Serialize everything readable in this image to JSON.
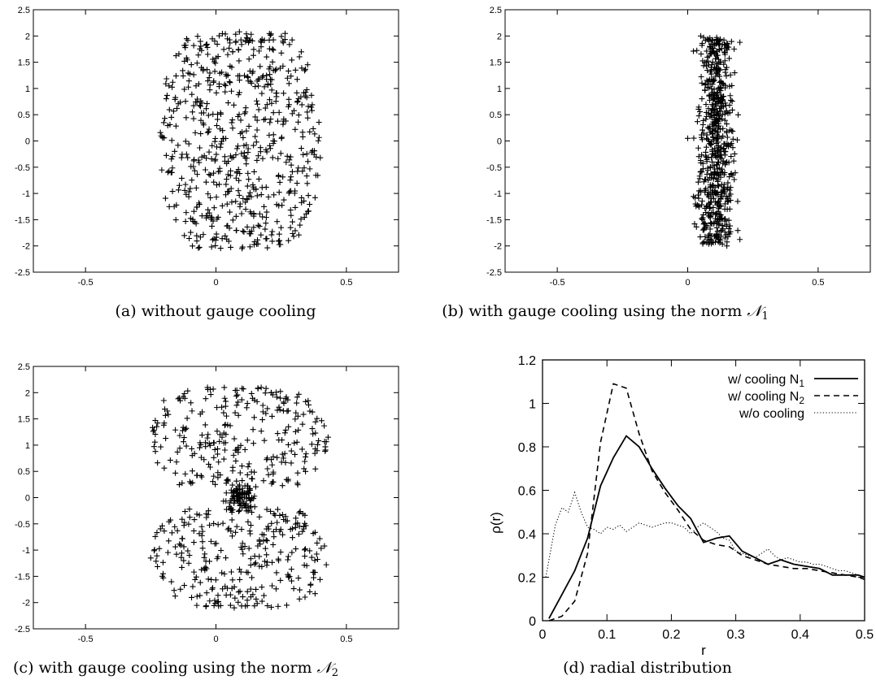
{
  "captions": {
    "a": "(a) without gauge cooling",
    "b": "(b) with gauge cooling using the norm",
    "b_math": "𝒩",
    "b_sub": "1",
    "c": "(c) with gauge cooling using the norm",
    "c_math": "𝒩",
    "c_sub": "2",
    "d": "(d) radial distribution"
  },
  "colors": {
    "ink": "#000000",
    "background": "#ffffff"
  },
  "chart_data": [
    {
      "id": "a",
      "type": "scatter",
      "marker": "plus",
      "title": "",
      "xlabel": "",
      "ylabel": "",
      "xlim": [
        -0.7,
        0.7
      ],
      "ylim": [
        -2.5,
        2.5
      ],
      "xticks": [
        "-0.5",
        "0",
        "0.5"
      ],
      "yticks": [
        "2.5",
        "2",
        "1.5",
        "1",
        "0.5",
        "0",
        "-0.5",
        "-1",
        "-1.5",
        "-2",
        "-2.5"
      ],
      "distribution": "roughly uniform oval cloud centred at x≈0.09, spanning x -0.21 to 0.40 and y -2.05 to 2.08, about 650 points",
      "points_sample": [
        [
          -0.2,
          0.35
        ],
        [
          -0.18,
          1.05
        ],
        [
          0.38,
          -1.08
        ],
        [
          0.4,
          -0.32
        ],
        [
          0.09,
          2.08
        ],
        [
          0.1,
          -2.05
        ],
        [
          -0.16,
          -1.25
        ],
        [
          0.35,
          0.55
        ]
      ]
    },
    {
      "id": "b",
      "type": "scatter",
      "marker": "plus",
      "title": "",
      "xlabel": "",
      "ylabel": "",
      "xlim": [
        -0.7,
        0.7
      ],
      "ylim": [
        -2.5,
        2.5
      ],
      "xticks": [
        "-0.5",
        "0",
        "0.5"
      ],
      "yticks": [
        "2.5",
        "2",
        "1.5",
        "1",
        "0.5",
        "0",
        "-0.5",
        "-1",
        "-1.5",
        "-2",
        "-2.5"
      ],
      "distribution": "narrow vertical band at x 0.03 to 0.2, y -2.0 to 2.0, about 650 points",
      "points_sample": [
        [
          0.0,
          0.05
        ],
        [
          0.19,
          0.02
        ],
        [
          0.05,
          2.0
        ],
        [
          0.15,
          -2.0
        ],
        [
          0.03,
          -1.2
        ],
        [
          0.18,
          1.3
        ]
      ]
    },
    {
      "id": "c",
      "type": "scatter",
      "marker": "plus",
      "title": "",
      "xlabel": "",
      "ylabel": "",
      "xlim": [
        -0.7,
        0.7
      ],
      "ylim": [
        -2.5,
        2.5
      ],
      "xticks": [
        "-0.5",
        "0",
        "0.5"
      ],
      "yticks": [
        "2.5",
        "2",
        "1.5",
        "1",
        "0.5",
        "0",
        "-0.5",
        "-1",
        "-1.5",
        "-2",
        "-2.5"
      ],
      "distribution": "two lobes (upper y 0.2 to 2.1, lower y -2.1 to -0.2) spanning x -0.25 to 0.43 with a dense core at (0.1, 0), about 650 points",
      "points_sample": [
        [
          -0.25,
          -1.15
        ],
        [
          0.43,
          1.15
        ],
        [
          0.38,
          -1.83
        ],
        [
          0.1,
          0.0
        ],
        [
          0.09,
          0.05
        ],
        [
          -0.2,
          1.85
        ],
        [
          0.1,
          2.08
        ],
        [
          0.07,
          -2.1
        ]
      ]
    },
    {
      "id": "d",
      "type": "line",
      "title": "",
      "xlabel": "r",
      "ylabel": "ρ(r)",
      "xlim": [
        0,
        0.5
      ],
      "ylim": [
        0,
        1.2
      ],
      "xticks": [
        "0",
        "0.1",
        "0.2",
        "0.3",
        "0.4",
        "0.5"
      ],
      "yticks": [
        "0",
        "0.2",
        "0.4",
        "0.6",
        "0.8",
        "1",
        "1.2"
      ],
      "legend_position": "top-right",
      "series": [
        {
          "name": "w/ cooling N",
          "name_sub": "1",
          "style": "solid",
          "x": [
            0.01,
            0.03,
            0.05,
            0.07,
            0.09,
            0.11,
            0.13,
            0.15,
            0.17,
            0.19,
            0.21,
            0.23,
            0.25,
            0.27,
            0.29,
            0.31,
            0.33,
            0.35,
            0.37,
            0.39,
            0.41,
            0.43,
            0.45,
            0.47,
            0.49,
            0.5
          ],
          "y": [
            0.01,
            0.12,
            0.23,
            0.38,
            0.62,
            0.75,
            0.85,
            0.8,
            0.7,
            0.61,
            0.53,
            0.47,
            0.36,
            0.38,
            0.39,
            0.32,
            0.29,
            0.26,
            0.28,
            0.26,
            0.25,
            0.24,
            0.21,
            0.21,
            0.21,
            0.2
          ]
        },
        {
          "name": "w/ cooling N",
          "name_sub": "2",
          "style": "dashed",
          "x": [
            0.01,
            0.03,
            0.05,
            0.07,
            0.09,
            0.11,
            0.13,
            0.15,
            0.17,
            0.19,
            0.21,
            0.23,
            0.25,
            0.27,
            0.29,
            0.31,
            0.33,
            0.35,
            0.37,
            0.39,
            0.41,
            0.43,
            0.45,
            0.47,
            0.49,
            0.5
          ],
          "y": [
            0.0,
            0.02,
            0.09,
            0.31,
            0.82,
            1.09,
            1.07,
            0.86,
            0.69,
            0.59,
            0.51,
            0.42,
            0.37,
            0.35,
            0.34,
            0.3,
            0.28,
            0.26,
            0.25,
            0.24,
            0.24,
            0.23,
            0.22,
            0.21,
            0.2,
            0.19
          ]
        },
        {
          "name": "w/o cooling",
          "style": "dotted",
          "x": [
            0.005,
            0.01,
            0.02,
            0.03,
            0.04,
            0.05,
            0.06,
            0.07,
            0.08,
            0.09,
            0.1,
            0.11,
            0.12,
            0.13,
            0.14,
            0.15,
            0.16,
            0.17,
            0.18,
            0.19,
            0.2,
            0.21,
            0.22,
            0.23,
            0.24,
            0.25,
            0.26,
            0.27,
            0.28,
            0.29,
            0.3,
            0.31,
            0.32,
            0.33,
            0.34,
            0.35,
            0.36,
            0.37,
            0.38,
            0.39,
            0.4,
            0.41,
            0.42,
            0.43,
            0.44,
            0.45,
            0.46,
            0.47,
            0.48,
            0.49,
            0.5
          ],
          "y": [
            0.2,
            0.28,
            0.44,
            0.52,
            0.5,
            0.59,
            0.5,
            0.43,
            0.42,
            0.4,
            0.43,
            0.42,
            0.44,
            0.41,
            0.43,
            0.45,
            0.44,
            0.43,
            0.44,
            0.45,
            0.45,
            0.44,
            0.43,
            0.4,
            0.43,
            0.45,
            0.43,
            0.41,
            0.38,
            0.37,
            0.32,
            0.31,
            0.3,
            0.29,
            0.31,
            0.33,
            0.3,
            0.28,
            0.29,
            0.28,
            0.27,
            0.27,
            0.26,
            0.26,
            0.25,
            0.24,
            0.23,
            0.23,
            0.22,
            0.21,
            0.19
          ]
        }
      ]
    }
  ]
}
